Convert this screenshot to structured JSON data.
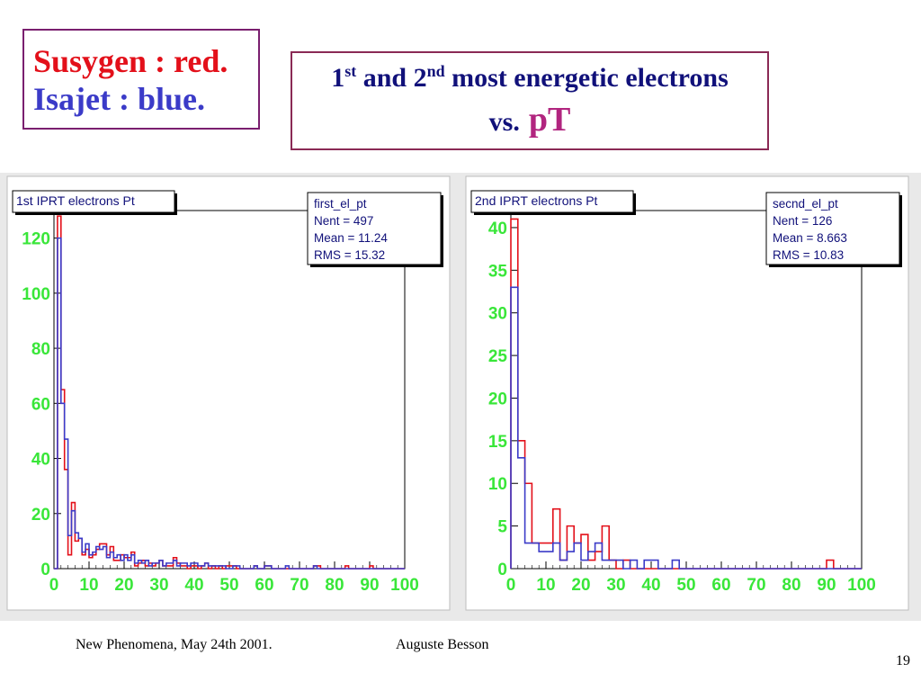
{
  "legend": {
    "line1": "Susygen : red.",
    "line2": "Isajet : blue."
  },
  "title": {
    "n1": "1",
    "sup1": "st",
    "and": " and 2",
    "sup2": "nd",
    "rest": " most energetic electrons",
    "vs": "vs.",
    "pt": "pT"
  },
  "colors": {
    "red": "#e3101a",
    "blue": "#3b3bc8",
    "axis_labels": "#39e639",
    "title_text": "#11117a",
    "pt": "#b1257f"
  },
  "footer": {
    "left": "New Phenomena, May 24th 2001.",
    "right": "Auguste Besson",
    "page": "19"
  },
  "chart_data": [
    {
      "type": "histogram",
      "title": "1st IPRT electrons Pt",
      "stats": {
        "name": "first_el_pt",
        "nent": "Nent = 497",
        "mean": "Mean  =  11.24",
        "rms": "RMS   =  15.32"
      },
      "xlim": [
        0,
        100
      ],
      "ylim": [
        0,
        130
      ],
      "xticks": [
        0,
        10,
        20,
        30,
        40,
        50,
        60,
        70,
        80,
        90,
        100
      ],
      "yticks": [
        0,
        20,
        40,
        60,
        80,
        100,
        120
      ],
      "bin_width": 1,
      "series": [
        {
          "color": "red",
          "values": [
            0,
            128,
            65,
            36,
            5,
            24,
            10,
            11,
            5,
            7,
            4,
            5,
            7,
            9,
            9,
            5,
            8,
            3,
            3,
            5,
            4,
            4,
            6,
            1,
            2,
            3,
            1,
            2,
            1,
            2,
            3,
            1,
            1,
            1,
            4,
            2,
            1,
            1,
            0,
            1,
            1,
            0,
            1,
            2,
            0,
            1,
            0,
            1,
            0,
            1,
            1,
            1,
            0,
            0,
            0,
            0,
            0,
            1,
            0,
            0,
            1,
            1,
            0,
            0,
            0,
            0,
            0,
            0,
            0,
            0,
            0,
            0,
            0,
            0,
            1,
            1,
            0,
            0,
            0,
            0,
            0,
            0,
            0,
            1,
            0,
            0,
            0,
            0,
            0,
            0,
            1,
            0,
            0,
            0,
            0,
            0,
            0,
            0,
            0,
            0
          ]
        },
        {
          "color": "blue",
          "values": [
            0,
            120,
            60,
            47,
            12,
            21,
            13,
            11,
            6,
            9,
            5,
            6,
            8,
            7,
            8,
            4,
            6,
            4,
            5,
            3,
            5,
            3,
            5,
            2,
            3,
            2,
            3,
            1,
            2,
            2,
            3,
            1,
            2,
            2,
            3,
            1,
            2,
            2,
            1,
            2,
            2,
            1,
            1,
            2,
            1,
            1,
            1,
            1,
            1,
            0,
            0,
            1,
            1,
            0,
            0,
            0,
            0,
            1,
            0,
            0,
            1,
            1,
            0,
            0,
            0,
            0,
            1,
            0,
            0,
            0,
            0,
            0,
            0,
            0,
            1,
            0,
            0,
            0,
            0,
            0,
            0,
            0,
            0,
            0,
            0,
            0,
            0,
            0,
            0,
            0,
            0,
            0,
            0,
            0,
            0,
            0,
            0,
            0,
            0,
            0
          ]
        }
      ]
    },
    {
      "type": "histogram",
      "title": "2nd IPRT electrons Pt",
      "stats": {
        "name": "secnd_el_pt",
        "nent": "Nent = 126",
        "mean": "Mean  =  8.663",
        "rms": "RMS   =  10.83"
      },
      "xlim": [
        0,
        100
      ],
      "ylim": [
        0,
        42
      ],
      "xticks": [
        0,
        10,
        20,
        30,
        40,
        50,
        60,
        70,
        80,
        90,
        100
      ],
      "yticks": [
        0,
        5,
        10,
        15,
        20,
        25,
        30,
        35,
        40
      ],
      "bin_width": 2,
      "series": [
        {
          "color": "red",
          "values": [
            41,
            15,
            10,
            3,
            3,
            3,
            7,
            1,
            5,
            3,
            4,
            1,
            2,
            5,
            1,
            0,
            1,
            0,
            0,
            0,
            0,
            0,
            0,
            0,
            0,
            0,
            0,
            0,
            0,
            0,
            0,
            0,
            0,
            0,
            0,
            0,
            0,
            0,
            0,
            0,
            0,
            0,
            0,
            0,
            0,
            1,
            0,
            0,
            0,
            0
          ]
        },
        {
          "color": "blue",
          "values": [
            33,
            13,
            3,
            3,
            2,
            2,
            3,
            1,
            2,
            3,
            1,
            2,
            3,
            1,
            1,
            1,
            0,
            1,
            0,
            1,
            1,
            0,
            0,
            1,
            0,
            0,
            0,
            0,
            0,
            0,
            0,
            0,
            0,
            0,
            0,
            0,
            0,
            0,
            0,
            0,
            0,
            0,
            0,
            0,
            0,
            0,
            0,
            0,
            0,
            0
          ]
        }
      ]
    }
  ]
}
